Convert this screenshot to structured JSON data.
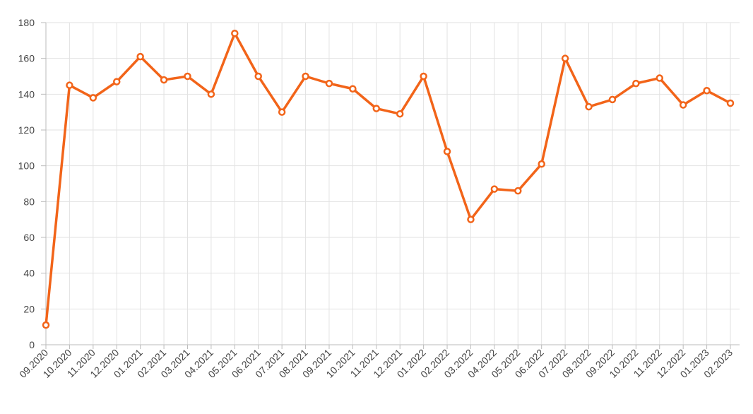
{
  "chart_data": {
    "type": "line",
    "categories": [
      "09.2020",
      "10.2020",
      "11.2020",
      "12.2020",
      "01.2021",
      "02.2021",
      "03.2021",
      "04.2021",
      "05.2021",
      "06.2021",
      "07.2021",
      "08.2021",
      "09.2021",
      "10.2021",
      "11.2021",
      "12.2021",
      "01.2022",
      "02.2022",
      "03.2022",
      "04.2022",
      "05.2022",
      "06.2022",
      "07.2022",
      "08.2022",
      "09.2022",
      "10.2022",
      "11.2022",
      "12.2022",
      "01.2023",
      "02.2023"
    ],
    "values": [
      11,
      145,
      138,
      147,
      161,
      148,
      150,
      140,
      174,
      150,
      130,
      150,
      146,
      143,
      132,
      129,
      150,
      108,
      70,
      87,
      86,
      101,
      160,
      133,
      137,
      146,
      149,
      134,
      142,
      135
    ],
    "color": "#f26419",
    "ylim": [
      0,
      180
    ],
    "yticks": [
      0,
      20,
      40,
      60,
      80,
      100,
      120,
      140,
      160,
      180
    ],
    "grid": true
  }
}
